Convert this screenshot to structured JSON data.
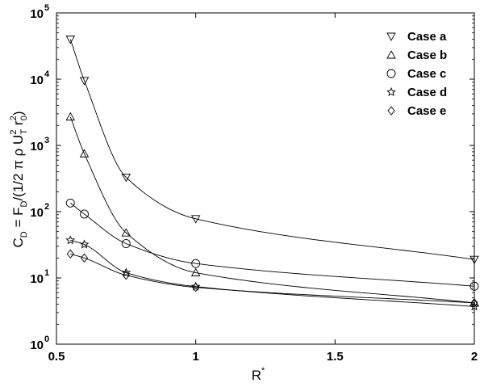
{
  "chart_data": {
    "type": "line",
    "x_scale": "linear",
    "y_scale": "log",
    "xlim": [
      0.5,
      2
    ],
    "ylim": [
      1,
      100000
    ],
    "grid": false,
    "legend_position": "top-right",
    "x_ticks": [
      0.5,
      1,
      1.5,
      2
    ],
    "x_tick_labels": [
      "0.5",
      "1",
      "1.5",
      "2"
    ],
    "y_ticks": [
      1,
      10,
      100,
      1000,
      10000,
      100000
    ],
    "y_tick_bases": [
      "10",
      "10",
      "10",
      "10",
      "10",
      "10"
    ],
    "y_tick_exps": [
      "0",
      "1",
      "2",
      "3",
      "4",
      "5"
    ],
    "xlabel": {
      "base": "R",
      "sup": "*"
    },
    "ylabel": {
      "p1": "C",
      "p1_sub": "D",
      "p2": " = F",
      "p2_sub": "D",
      "p3": "/(1/2 π ρ U",
      "p3_sup": "2",
      "p3_sub": "T",
      "p4": " r",
      "p4_sup": "2",
      "p4_sub": "0",
      "p5": ")"
    },
    "series": [
      {
        "name": "Case a",
        "marker": "triangle-down",
        "x": [
          0.55,
          0.6,
          0.75,
          1.0,
          2.0
        ],
        "y": [
          40000,
          9500,
          330,
          78,
          19
        ]
      },
      {
        "name": "Case b",
        "marker": "triangle-up",
        "x": [
          0.55,
          0.6,
          0.75,
          1.0,
          2.0
        ],
        "y": [
          2700,
          750,
          48,
          12,
          4.2
        ]
      },
      {
        "name": "Case c",
        "marker": "circle",
        "x": [
          0.55,
          0.6,
          0.75,
          1.0,
          2.0
        ],
        "y": [
          135,
          92,
          33,
          16.5,
          7.5
        ]
      },
      {
        "name": "Case d",
        "marker": "star",
        "x": [
          0.55,
          0.6,
          0.75,
          1.0,
          2.0
        ],
        "y": [
          37,
          32,
          12,
          7.4,
          3.7
        ]
      },
      {
        "name": "Case e",
        "marker": "diamond",
        "x": [
          0.55,
          0.6,
          0.75,
          1.0,
          2.0
        ],
        "y": [
          23,
          20,
          11,
          7.2,
          4.2
        ]
      }
    ]
  }
}
